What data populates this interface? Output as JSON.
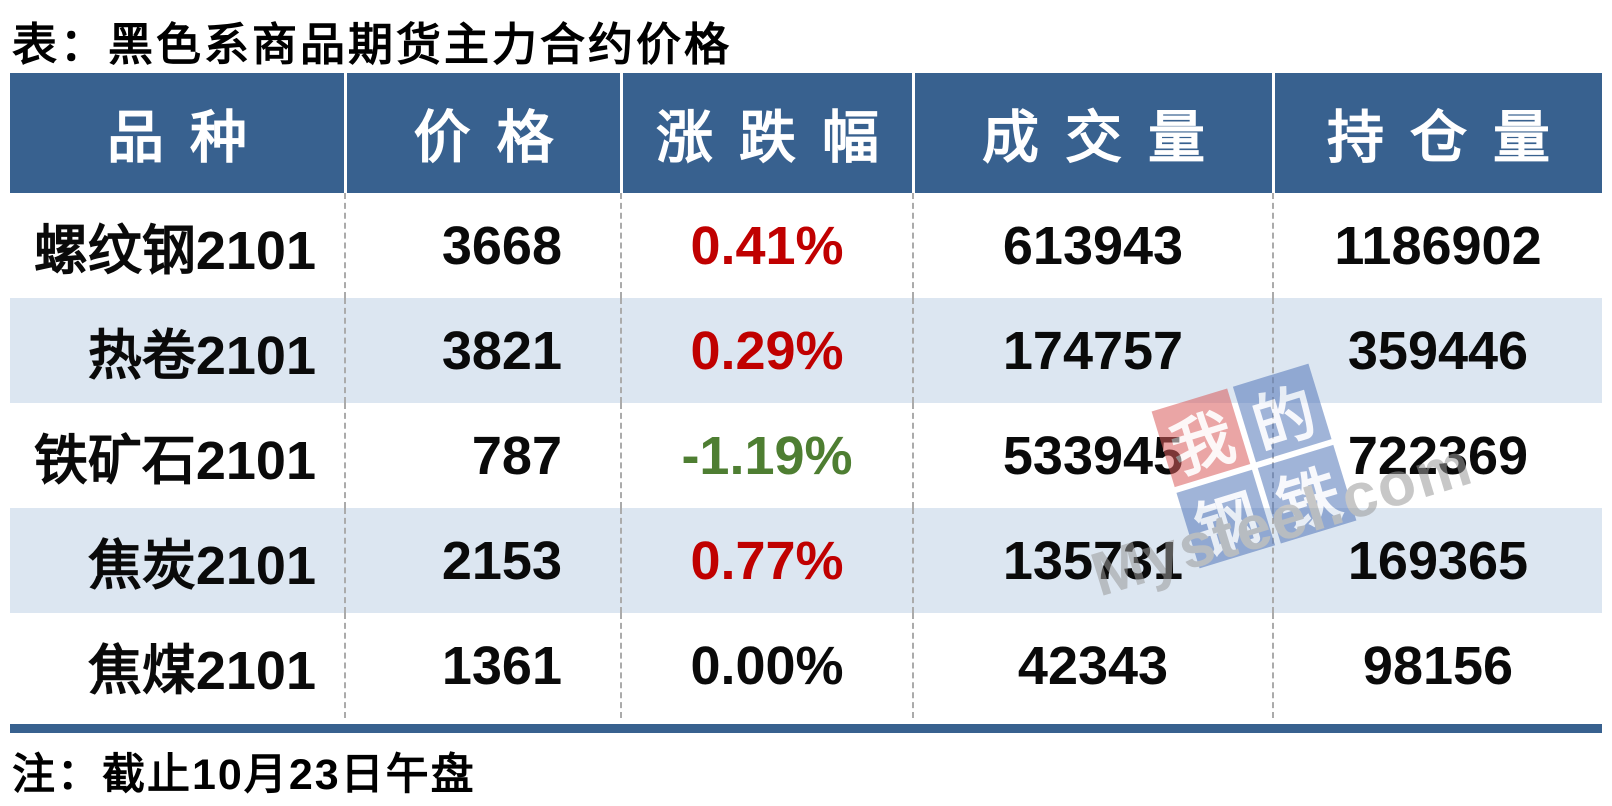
{
  "title": "表：黑色系商品期货主力合约价格",
  "note": "注：截止10月23日午盘",
  "colors": {
    "header_bg": "#38618F",
    "row_alt_bg": "#DCE6F1",
    "up_red": "#C00000",
    "down_green": "#4E7E32",
    "divider_dash": "#ABABAB",
    "watermark_red": "#D95C5C",
    "watermark_blue": "#5377BA",
    "watermark_gray": "#9A9A9A"
  },
  "table": {
    "columns": [
      {
        "key": "variety",
        "label": "品种"
      },
      {
        "key": "price",
        "label": "价格"
      },
      {
        "key": "change",
        "label": "涨跌幅"
      },
      {
        "key": "volume",
        "label": "成交量"
      },
      {
        "key": "open_interest",
        "label": "持仓量"
      }
    ],
    "rows": [
      {
        "variety": "螺纹钢2101",
        "price": "3668",
        "change": "0.41%",
        "change_dir": "up",
        "volume": "613943",
        "open_interest": "1186902"
      },
      {
        "variety": "热卷2101",
        "price": "3821",
        "change": "0.29%",
        "change_dir": "up",
        "volume": "174757",
        "open_interest": "359446"
      },
      {
        "variety": "铁矿石2101",
        "price": "787",
        "change": "-1.19%",
        "change_dir": "down",
        "volume": "533945",
        "open_interest": "722369"
      },
      {
        "variety": "焦炭2101",
        "price": "2153",
        "change": "0.77%",
        "change_dir": "up",
        "volume": "135731",
        "open_interest": "169365"
      },
      {
        "variety": "焦煤2101",
        "price": "1361",
        "change": "0.00%",
        "change_dir": "flat",
        "volume": "42343",
        "open_interest": "98156"
      }
    ]
  },
  "watermark": {
    "squares": [
      {
        "char": "我",
        "color": "red"
      },
      {
        "char": "的",
        "color": "blue"
      },
      {
        "char": "钢",
        "color": "blue"
      },
      {
        "char": "铁",
        "color": "blue"
      }
    ],
    "text": "Mysteel.com"
  },
  "chart_data": {
    "type": "table",
    "title": "表：黑色系商品期货主力合约价格",
    "columns": [
      "品种",
      "价格",
      "涨跌幅",
      "成交量",
      "持仓量"
    ],
    "rows": [
      [
        "螺纹钢2101",
        3668,
        "0.41%",
        613943,
        1186902
      ],
      [
        "热卷2101",
        3821,
        "0.29%",
        174757,
        359446
      ],
      [
        "铁矿石2101",
        787,
        "-1.19%",
        533945,
        722369
      ],
      [
        "焦炭2101",
        2153,
        "0.77%",
        135731,
        169365
      ],
      [
        "焦煤2101",
        1361,
        "0.00%",
        42343,
        98156
      ]
    ],
    "note": "注：截止10月23日午盘",
    "legend_position": "none",
    "grid": "dashed-column-dividers"
  }
}
